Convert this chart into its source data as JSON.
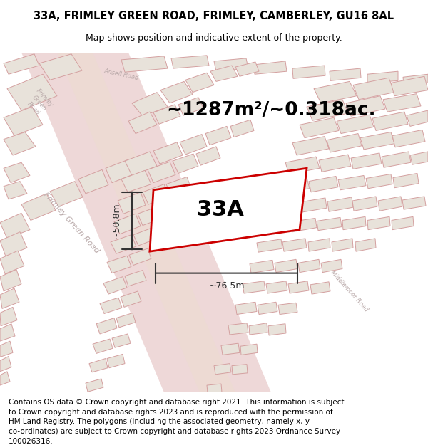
{
  "title": "33A, FRIMLEY GREEN ROAD, FRIMLEY, CAMBERLEY, GU16 8AL",
  "subtitle": "Map shows position and indicative extent of the property.",
  "footer_lines": [
    "Contains OS data © Crown copyright and database right 2021. This information is subject",
    "to Crown copyright and database rights 2023 and is reproduced with the permission of",
    "HM Land Registry. The polygons (including the associated geometry, namely x, y",
    "co-ordinates) are subject to Crown copyright and database rights 2023 Ordnance Survey",
    "100026316."
  ],
  "area_label": "~1287m²/~0.318ac.",
  "property_label": "33A",
  "width_label": "~76.5m",
  "height_label": "~50.8m",
  "map_bg": "#f2ece4",
  "building_fill": "#e8e2da",
  "building_edge": "#d4a0a0",
  "road_fill": "#e8c8c8",
  "road_center_fill": "#eddcd0",
  "property_fill": "#ffffff",
  "property_stroke": "#cc0000",
  "dim_color": "#333333",
  "road_label_color": "#b8a8a8",
  "title_fontsize": 10.5,
  "subtitle_fontsize": 9,
  "area_fontsize": 19,
  "prop_label_fontsize": 22,
  "dim_fontsize": 9,
  "road_fontsize": 8,
  "footer_fontsize": 7.5
}
